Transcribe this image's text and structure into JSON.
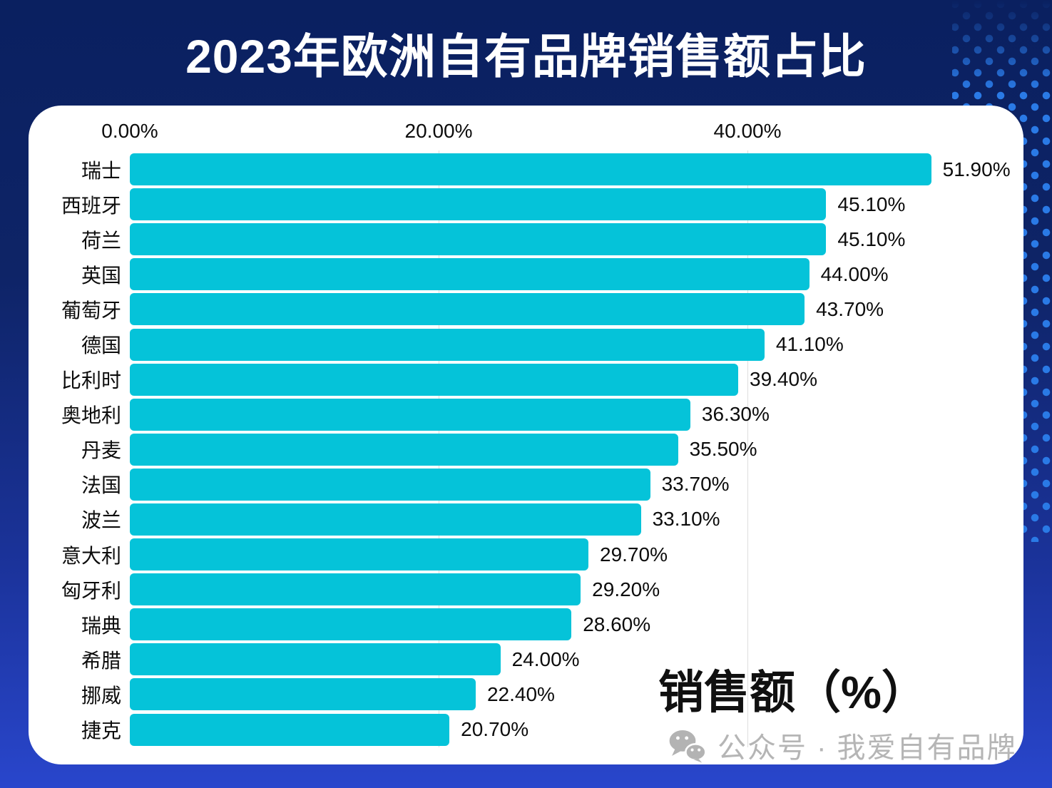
{
  "page": {
    "title": "2023年欧洲自有品牌销售额占比"
  },
  "chart_data": {
    "type": "bar",
    "orientation": "horizontal",
    "title": "2023年欧洲自有品牌销售额占比",
    "categories": [
      "瑞士",
      "西班牙",
      "荷兰",
      "英国",
      "葡萄牙",
      "德国",
      "比利时",
      "奥地利",
      "丹麦",
      "法国",
      "波兰",
      "意大利",
      "匈牙利",
      "瑞典",
      "希腊",
      "挪威",
      "捷克"
    ],
    "values": [
      51.9,
      45.1,
      45.1,
      44.0,
      43.7,
      41.1,
      39.4,
      36.3,
      35.5,
      33.7,
      33.1,
      29.7,
      29.2,
      28.6,
      24.0,
      22.4,
      20.7
    ],
    "value_labels": [
      "51.90%",
      "45.10%",
      "45.10%",
      "44.00%",
      "43.70%",
      "41.10%",
      "39.40%",
      "36.30%",
      "35.50%",
      "33.70%",
      "33.10%",
      "29.70%",
      "29.20%",
      "28.60%",
      "24.00%",
      "22.40%",
      "20.70%"
    ],
    "x_ticks": [
      "0.00%",
      "20.00%",
      "40.00%"
    ],
    "x_tick_values": [
      0,
      20,
      40
    ],
    "xlim": [
      0,
      55
    ],
    "axis_label": "销售额（%）",
    "bar_color": "#05c3d9",
    "grid": true,
    "legend": "none"
  },
  "watermark": {
    "text": "公众号 · 我爱自有品牌",
    "icon": "wechat-icon",
    "color": "#b5b5b5"
  },
  "colors": {
    "background_top": "#0a2060",
    "background_bottom": "#2946cc",
    "dot_pattern": "#2a7ae6",
    "bar": "#05c3d9",
    "card": "#ffffff",
    "gridline": "#dedede"
  }
}
